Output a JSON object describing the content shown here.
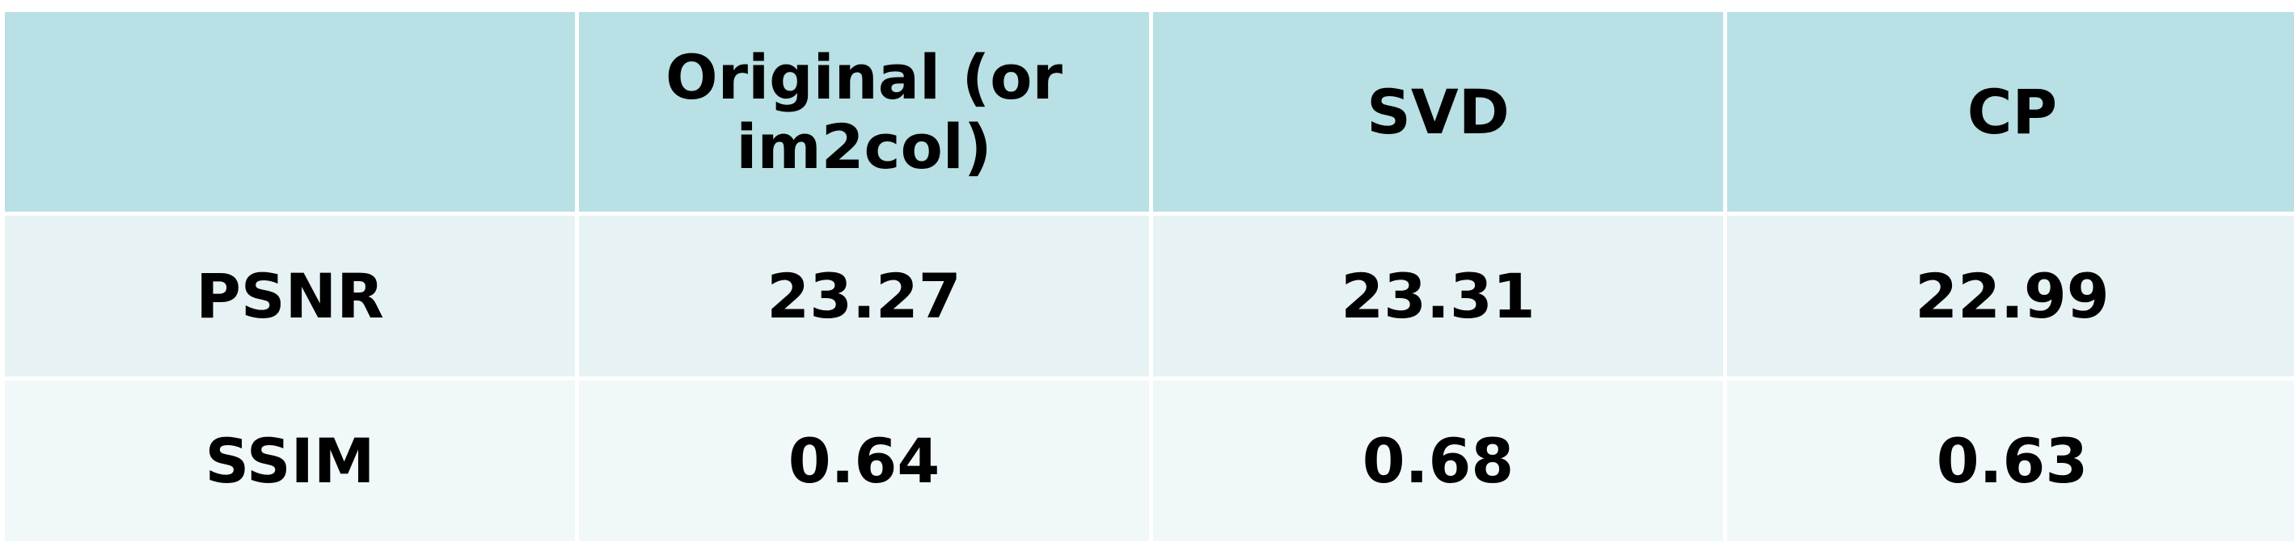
{
  "table": {
    "columns": [
      "",
      "Original (or\nim2col)",
      "SVD",
      "CP"
    ],
    "rows": [
      {
        "label": "PSNR",
        "values": [
          "23.27",
          "23.31",
          "22.99"
        ]
      },
      {
        "label": "SSIM",
        "values": [
          "0.64",
          "0.68",
          "0.63"
        ]
      }
    ]
  },
  "colors": {
    "header_bg": "#b9e0e4",
    "row1_bg": "#e6f2f3",
    "row2_bg": "#f1f8f9",
    "text": "#000000",
    "divider": "#ffffff"
  }
}
